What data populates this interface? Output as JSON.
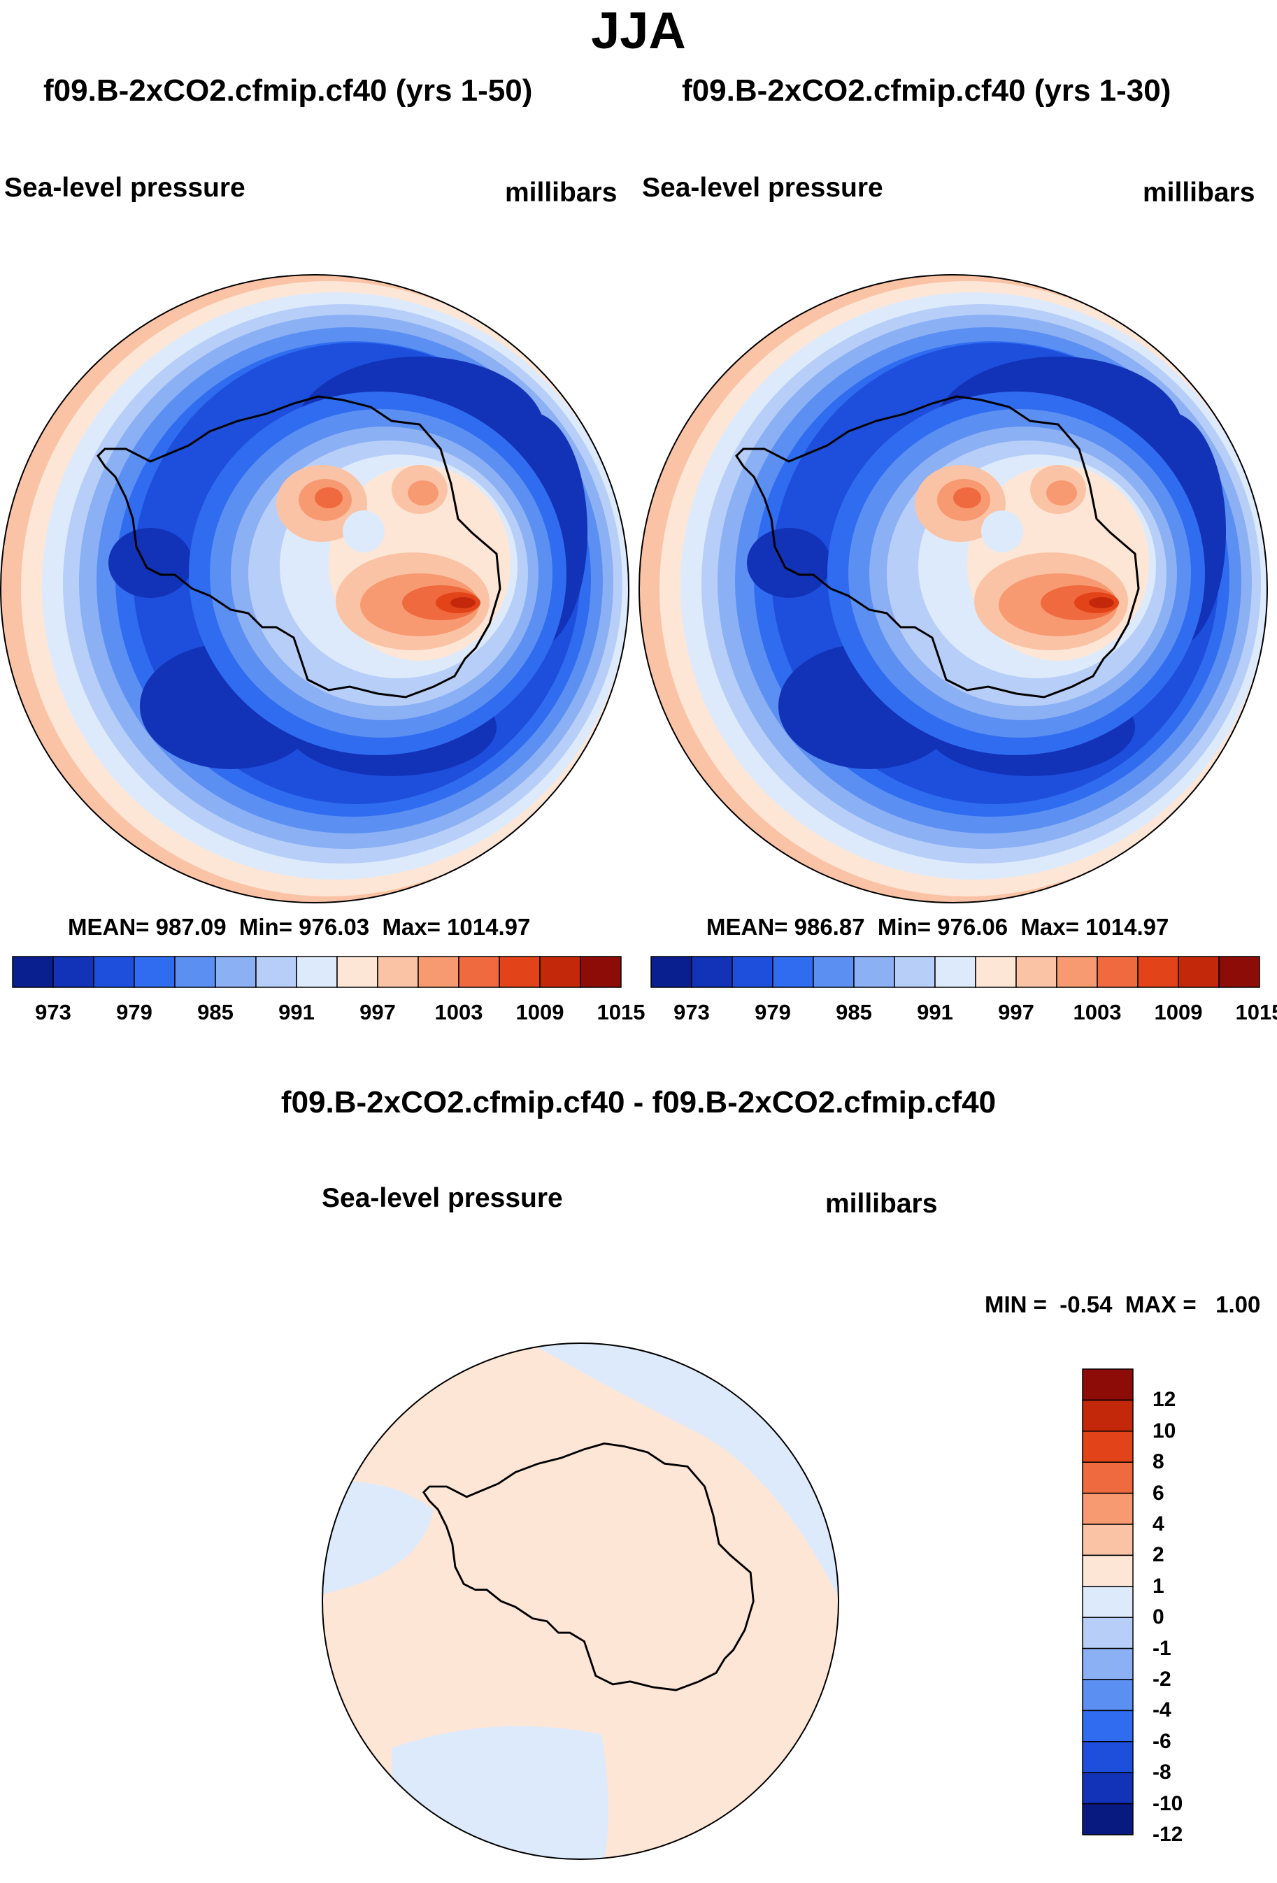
{
  "figure": {
    "title": "JJA",
    "panels": [
      {
        "title": "f09.B-2xCO2.cfmip.cf40 (yrs 1-50)",
        "variable": "Sea-level pressure",
        "units": "millibars",
        "mean_label": "MEAN=",
        "mean": "987.09",
        "min_label": "Min=",
        "min": "976.03",
        "max_label": "Max=",
        "max": "1014.97"
      },
      {
        "title": "f09.B-2xCO2.cfmip.cf40 (yrs 1-30)",
        "variable": "Sea-level pressure",
        "units": "millibars",
        "mean_label": "MEAN=",
        "mean": "986.87",
        "min_label": "Min=",
        "min": "976.06",
        "max_label": "Max=",
        "max": "1014.97"
      }
    ],
    "colorbar": {
      "colors": [
        "#0a1f8f",
        "#1232b8",
        "#1d4fdc",
        "#2f6cf0",
        "#5b8ff2",
        "#8cb0f4",
        "#b7cff8",
        "#ddeafc",
        "#fde6d6",
        "#fbc3a5",
        "#f79a72",
        "#f06a3f",
        "#e34318",
        "#c4280a",
        "#8e0c08"
      ],
      "tick_labels": [
        "973",
        "979",
        "985",
        "991",
        "997",
        "1003",
        "1009",
        "1015"
      ]
    },
    "difference": {
      "title": "f09.B-2xCO2.cfmip.cf40 - f09.B-2xCO2.cfmip.cf40",
      "variable": "Sea-level pressure",
      "units": "millibars",
      "min_label": "MIN =",
      "min": "-0.54",
      "max_label": "MAX =",
      "max": "1.00",
      "colorbar": {
        "colors": [
          "#8e0c08",
          "#c4280a",
          "#e34318",
          "#f06a3f",
          "#f79a72",
          "#fbc3a5",
          "#fde6d6",
          "#ddeafc",
          "#b7cff8",
          "#8cb0f4",
          "#5b8ff2",
          "#2f6cf0",
          "#1d4fdc",
          "#1232b8",
          "#081a80"
        ],
        "tick_labels": [
          "12",
          "10",
          "8",
          "6",
          "4",
          "2",
          "1",
          "0",
          "-1",
          "-2",
          "-4",
          "-6",
          "-8",
          "-10",
          "-12"
        ]
      }
    }
  }
}
